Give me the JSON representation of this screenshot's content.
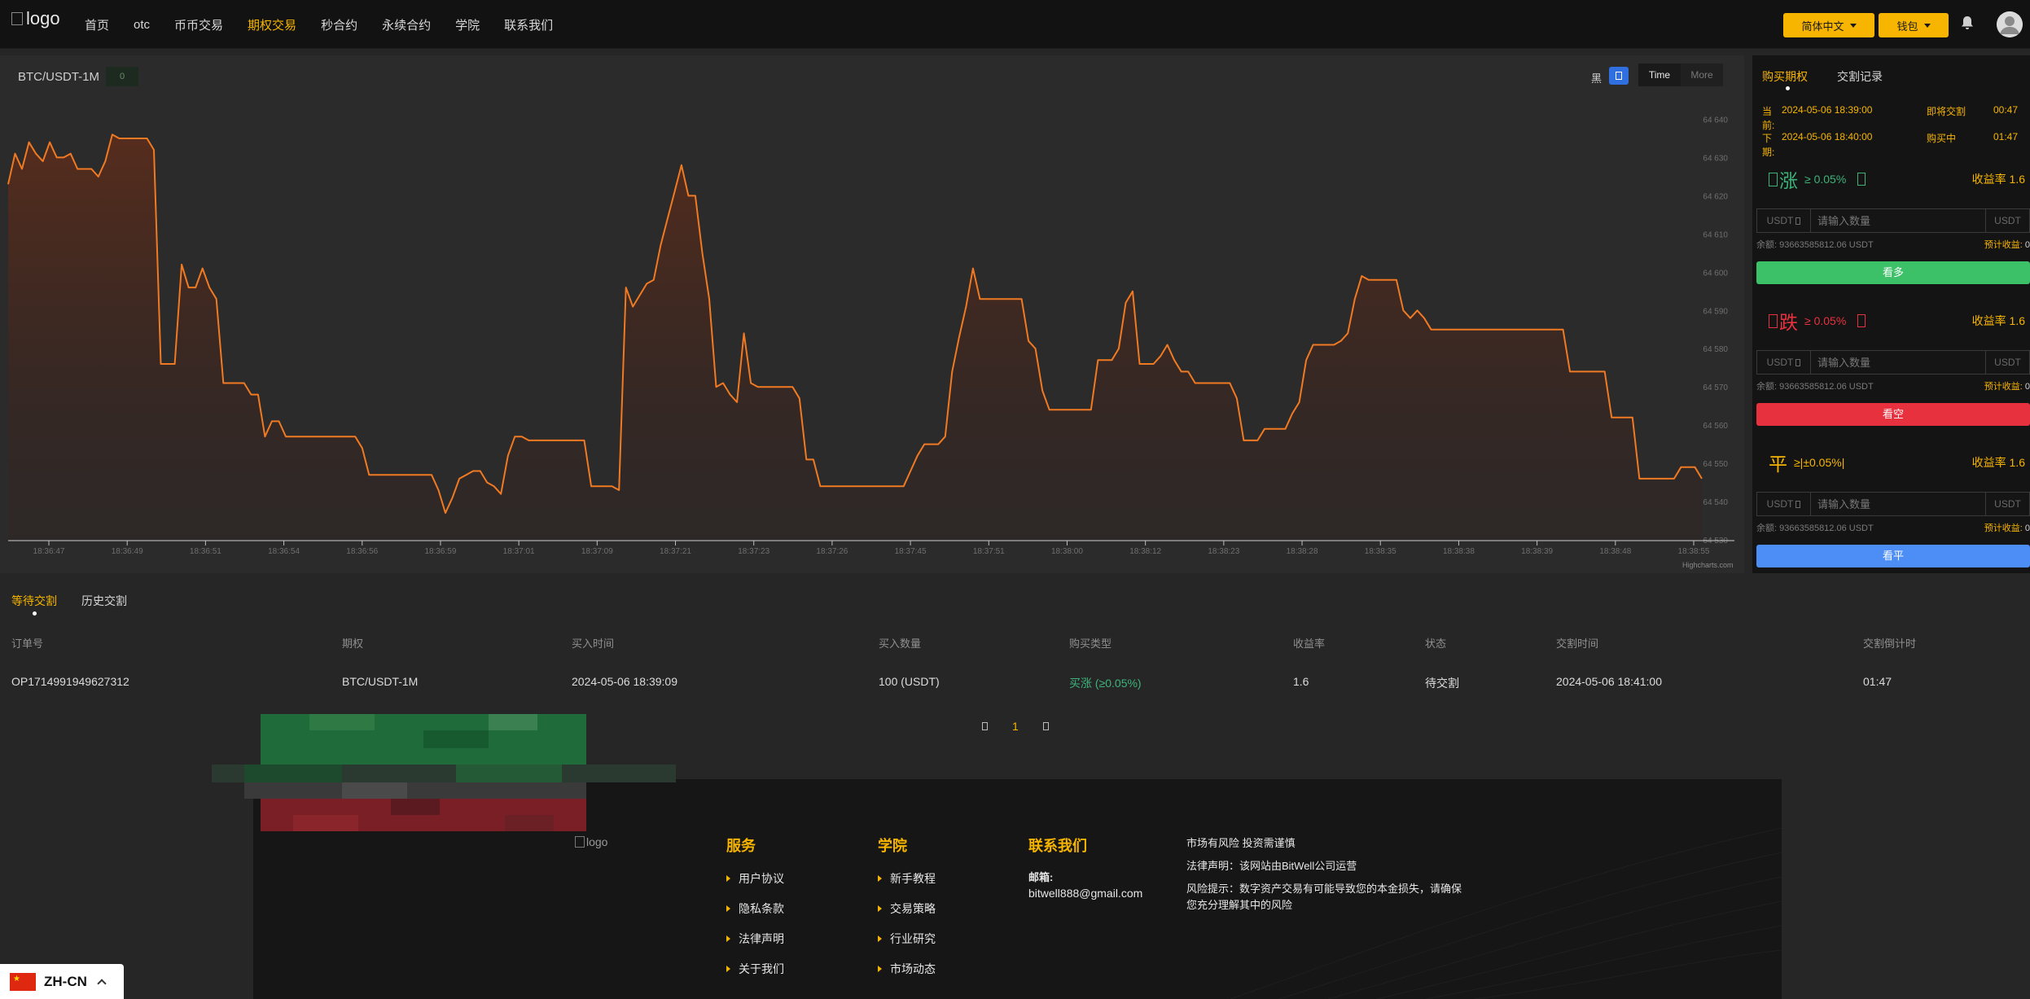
{
  "header": {
    "logo_alt": "logo",
    "nav": [
      "首页",
      "otc",
      "币币交易",
      "期权交易",
      "秒合约",
      "永续合约",
      "学院",
      "联系我们"
    ],
    "nav_active_index": 3,
    "lang_label": "简体中文",
    "wallet_label": "钱包"
  },
  "chart": {
    "pair": "BTC/USDT-1M",
    "badge": "0",
    "theme_label": "黑",
    "time_buttons": [
      "Time",
      "More"
    ],
    "credit": "Highcharts.com"
  },
  "chart_data": {
    "type": "area",
    "ylim": [
      64530,
      64645
    ],
    "y_ticks": [
      "64 640",
      "64 630",
      "64 620",
      "64 610",
      "64 600",
      "64 590",
      "64 580",
      "64 570",
      "64 560",
      "64 550",
      "64 540",
      "64 530"
    ],
    "x_ticks": [
      "18:36:47",
      "18:36:49",
      "18:36:51",
      "18:36:54",
      "18:36:56",
      "18:36:59",
      "18:37:01",
      "18:37:09",
      "18:37:21",
      "18:37:23",
      "18:37:26",
      "18:37:45",
      "18:37:51",
      "18:38:00",
      "18:38:12",
      "18:38:23",
      "18:38:28",
      "18:38:35",
      "18:38:38",
      "18:38:39",
      "18:38:48",
      "18:38:55"
    ],
    "series": [
      {
        "values": [
          64623,
          64631,
          64627,
          64634,
          64631,
          64629,
          64634,
          64630,
          64630,
          64631,
          64627,
          64627,
          64627,
          64625,
          64629,
          64636,
          64635,
          64635,
          64635,
          64635,
          64635,
          64632,
          64576,
          64576,
          64576,
          64602,
          64596,
          64596,
          64601,
          64596,
          64593,
          64571,
          64571,
          64571,
          64571,
          64568,
          64568,
          64557,
          64561,
          64561,
          64557,
          64557,
          64557,
          64557,
          64557,
          64557,
          64557,
          64557,
          64557,
          64557,
          64557,
          64554,
          64547,
          64547,
          64547,
          64547,
          64547,
          64547,
          64547,
          64547,
          64547,
          64547,
          64543,
          64537,
          64541,
          64546,
          64547,
          64548,
          64548,
          64545,
          64544,
          64542,
          64552,
          64557,
          64557,
          64556,
          64556,
          64556,
          64556,
          64556,
          64556,
          64556,
          64556,
          64556,
          64544,
          64544,
          64544,
          64544,
          64543,
          64596,
          64591,
          64594,
          64597,
          64598,
          64607,
          64614,
          64621,
          64628,
          64620,
          64620,
          64605,
          64593,
          64570,
          64571,
          64568,
          64566,
          64584,
          64571,
          64570,
          64570,
          64570,
          64570,
          64570,
          64570,
          64567,
          64551,
          64551,
          64544,
          64544,
          64544,
          64544,
          64544,
          64544,
          64544,
          64544,
          64544,
          64544,
          64544,
          64544,
          64544,
          64548,
          64552,
          64555,
          64555,
          64555,
          64557,
          64574,
          64583,
          64591,
          64601,
          64593,
          64593,
          64593,
          64593,
          64593,
          64593,
          64593,
          64582,
          64580,
          64569,
          64564,
          64564,
          64564,
          64564,
          64564,
          64564,
          64564,
          64577,
          64577,
          64577,
          64580,
          64592,
          64595,
          64576,
          64576,
          64576,
          64578,
          64581,
          64577,
          64574,
          64574,
          64571,
          64571,
          64571,
          64571,
          64571,
          64571,
          64567,
          64556,
          64556,
          64556,
          64559,
          64559,
          64559,
          64559,
          64563,
          64566,
          64577,
          64581,
          64581,
          64581,
          64581,
          64582,
          64584,
          64593,
          64599,
          64598,
          64598,
          64598,
          64598,
          64598,
          64590,
          64588,
          64590,
          64588,
          64585,
          64585,
          64585,
          64585,
          64585,
          64585,
          64585,
          64585,
          64585,
          64585,
          64585,
          64585,
          64585,
          64585,
          64585,
          64585,
          64585,
          64585,
          64585,
          64585,
          64574,
          64574,
          64574,
          64574,
          64574,
          64574,
          64562,
          64562,
          64562,
          64562,
          64546,
          64546,
          64546,
          64546,
          64546,
          64546,
          64549,
          64549,
          64549,
          64546
        ]
      }
    ]
  },
  "trade": {
    "tabs": [
      "购买期权",
      "交割记录"
    ],
    "current": {
      "label": "当前:",
      "datetime": "2024-05-06 18:39:00",
      "status": "即将交割",
      "countdown": "00:47"
    },
    "next": {
      "label": "下期:",
      "datetime": "2024-05-06 18:40:00",
      "status": "购买中",
      "countdown": "01:47"
    },
    "options": [
      {
        "symbol": "涨",
        "cond": "≥ 0.05%",
        "rate": "收益率 1.6",
        "btn": "看多",
        "color": "#3cc068"
      },
      {
        "symbol": "跌",
        "cond": "≥ 0.05%",
        "rate": "收益率 1.6",
        "btn": "看空",
        "color": "#e8313f"
      },
      {
        "symbol": "平",
        "cond": "≥|±0.05%|",
        "rate": "收益率 1.6",
        "btn": "看平",
        "color": "#4c8df6"
      }
    ],
    "input_currency": "USDT",
    "input_placeholder": "请输入数量",
    "input_unit": "USDT",
    "balance_label": "余额:",
    "balance_value": "93663585812.06 USDT",
    "est_label": "预计收益:",
    "est_value": "0"
  },
  "orders": {
    "tabs": [
      "等待交割",
      "历史交割"
    ],
    "columns": [
      "订单号",
      "期权",
      "买入时间",
      "买入数量",
      "购买类型",
      "收益率",
      "状态",
      "交割时间",
      "交割倒计时"
    ],
    "rows": [
      [
        "OP1714991949627312",
        "BTC/USDT-1M",
        "2024-05-06 18:39:09",
        "100 (USDT)",
        "买涨 (≥0.05%)",
        "1.6",
        "待交割",
        "2024-05-06 18:41:00",
        "01:47"
      ]
    ],
    "page": "1"
  },
  "footer": {
    "logo_alt": "logo",
    "services": {
      "title": "服务",
      "items": [
        "用户协议",
        "隐私条款",
        "法律声明",
        "关于我们"
      ]
    },
    "academy": {
      "title": "学院",
      "items": [
        "新手教程",
        "交易策略",
        "行业研究",
        "市场动态"
      ]
    },
    "contact": {
      "title": "联系我们",
      "email_label": "邮箱:",
      "email": "bitwell888@gmail.com"
    },
    "notice": [
      "市场有风险 投资需谨慎",
      "法律声明：该网站由BitWell公司运营",
      "风险提示：数字资产交易有可能导致您的本金损失，请确保您充分理解其中的风险"
    ]
  },
  "lang_switcher": {
    "code": "ZH-CN"
  }
}
